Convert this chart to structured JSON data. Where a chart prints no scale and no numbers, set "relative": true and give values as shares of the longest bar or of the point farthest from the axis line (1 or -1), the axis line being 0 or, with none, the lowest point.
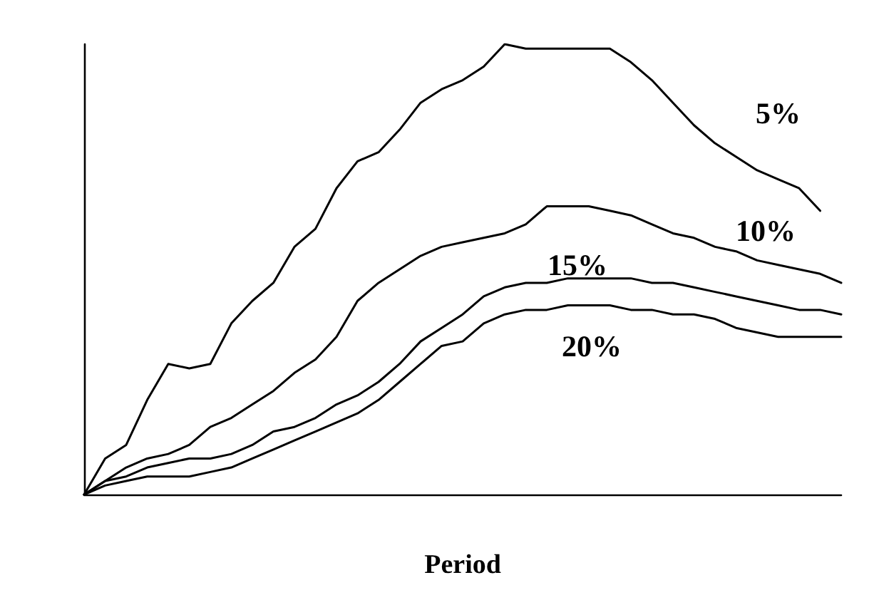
{
  "chart_data": {
    "type": "line",
    "relative": true,
    "xlabel": "Period",
    "marker": "none",
    "grid": false,
    "legend": false,
    "categories": [
      null,
      null,
      null,
      null,
      null,
      null,
      null,
      null,
      null,
      null,
      null,
      null,
      null,
      null,
      null,
      null,
      null,
      null,
      null,
      null,
      null,
      null,
      null,
      null,
      null,
      null,
      null,
      null,
      null,
      null,
      null,
      null,
      null,
      null,
      null,
      null,
      null
    ],
    "series": [
      {
        "name": "5%",
        "color": "#000000",
        "values": [
          0,
          0.08,
          0.11,
          0.21,
          0.29,
          0.28,
          0.29,
          0.38,
          0.43,
          0.47,
          0.55,
          0.59,
          0.68,
          0.74,
          0.76,
          0.81,
          0.87,
          0.9,
          0.92,
          0.95,
          1.0,
          0.99,
          0.99,
          0.99,
          0.99,
          0.99,
          0.96,
          0.92,
          0.87,
          0.82,
          0.78,
          0.75,
          0.72,
          0.7,
          0.68,
          0.63,
          null
        ]
      },
      {
        "name": "10%",
        "color": "#000000",
        "values": [
          0,
          0.03,
          0.06,
          0.08,
          0.09,
          0.11,
          0.15,
          0.17,
          0.2,
          0.23,
          0.27,
          0.3,
          0.35,
          0.43,
          0.47,
          0.5,
          0.53,
          0.55,
          0.56,
          0.57,
          0.58,
          0.6,
          0.64,
          0.64,
          0.64,
          0.63,
          0.62,
          0.6,
          0.58,
          0.57,
          0.55,
          0.54,
          0.52,
          0.51,
          0.5,
          0.49,
          0.47
        ]
      },
      {
        "name": "15%",
        "color": "#000000",
        "values": [
          0,
          0.03,
          0.04,
          0.06,
          0.07,
          0.08,
          0.08,
          0.09,
          0.11,
          0.14,
          0.15,
          0.17,
          0.2,
          0.22,
          0.25,
          0.29,
          0.34,
          0.37,
          0.4,
          0.44,
          0.46,
          0.47,
          0.47,
          0.48,
          0.48,
          0.48,
          0.48,
          0.47,
          0.47,
          0.46,
          0.45,
          0.44,
          0.43,
          0.42,
          0.41,
          0.41,
          0.4
        ]
      },
      {
        "name": "20%",
        "color": "#000000",
        "values": [
          0,
          0.02,
          0.03,
          0.04,
          0.04,
          0.04,
          0.05,
          0.06,
          0.08,
          0.1,
          0.12,
          0.14,
          0.16,
          0.18,
          0.21,
          0.25,
          0.29,
          0.33,
          0.34,
          0.38,
          0.4,
          0.41,
          0.41,
          0.42,
          0.42,
          0.42,
          0.41,
          0.41,
          0.4,
          0.4,
          0.39,
          0.37,
          0.36,
          0.35,
          0.35,
          0.35,
          0.35
        ]
      }
    ]
  }
}
